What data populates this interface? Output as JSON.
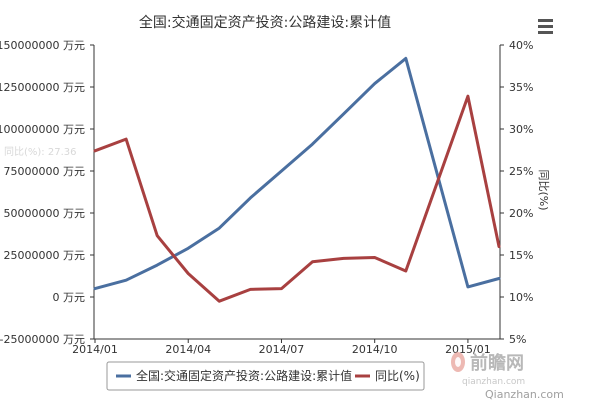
{
  "chart_data": {
    "type": "line",
    "title": "全国:交通固定资产投资:公路建设:累计值",
    "x": [
      "2014/01",
      "2014/02",
      "2014/03",
      "2014/04",
      "2014/05",
      "2014/06",
      "2014/07",
      "2014/08",
      "2014/09",
      "2014/10",
      "2014/11",
      "2014/12",
      "2015/01",
      "2015/02"
    ],
    "x_tick_labels": [
      "2014/01",
      "2014/04",
      "2014/07",
      "2014/10",
      "2015/01"
    ],
    "left_axis": {
      "min": -25000000,
      "max": 150000000,
      "ticks": [
        "150000000 万元",
        "125000000 万元",
        "100000000 万元",
        "75000000 万元",
        "50000000 万元",
        "25000000 万元",
        "0 万元",
        "-25000000 万元"
      ]
    },
    "right_axis": {
      "label": "同比(%)",
      "min": 5,
      "max": 40,
      "ticks": [
        "40%",
        "35%",
        "30%",
        "25%",
        "20%",
        "15%",
        "10%",
        "5%"
      ]
    },
    "series": [
      {
        "name": "全国:交通固定资产投资:公路建设:累计值",
        "axis": "left",
        "color": "#4a6fa0",
        "values": [
          5000000,
          10000000,
          19000000,
          29000000,
          41000000,
          59000000,
          75000000,
          91000000,
          109000000,
          127000000,
          142000000,
          null,
          6000000,
          11000000
        ]
      },
      {
        "name": "同比(%)",
        "axis": "right",
        "color": "#a84040",
        "values": [
          27.4,
          28.8,
          17.3,
          12.8,
          9.5,
          10.9,
          11.0,
          14.2,
          14.6,
          14.7,
          13.1,
          null,
          33.9,
          16.0
        ]
      }
    ],
    "tooltip_text": "同比(%): 27.36",
    "legend_position": "bottom"
  },
  "watermark": {
    "brand": "前瞻网",
    "domain_1": "qianzhan.com",
    "domain_2": "Qianzhan.com"
  },
  "icons": {
    "menu": "hamburger-menu-icon",
    "logo": "qianzhan-logo-icon"
  }
}
